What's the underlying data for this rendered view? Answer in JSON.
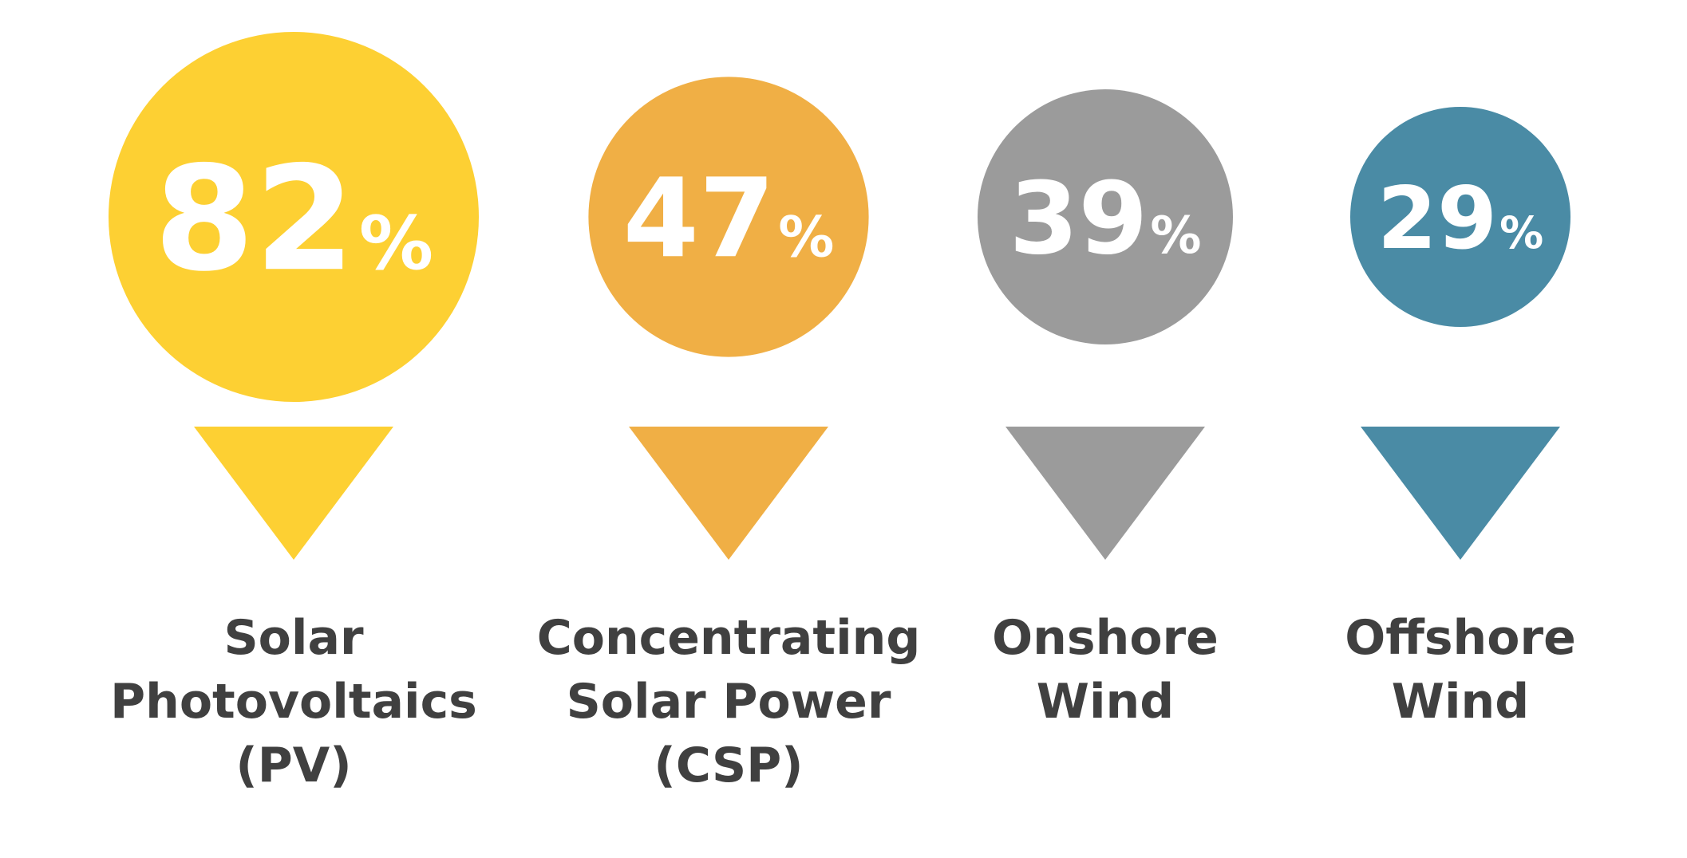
{
  "chart_data": {
    "type": "bar",
    "title": "",
    "unit": "%",
    "categories": [
      "Solar Photovoltaics (PV)",
      "Concentrating Solar Power (CSP)",
      "Onshore Wind",
      "Offshore Wind"
    ],
    "values": [
      82,
      47,
      39,
      29
    ],
    "label_lines": [
      [
        "Solar",
        "Photovoltaics",
        "(PV)"
      ],
      [
        "Concentrating",
        "Solar Power",
        "(CSP)"
      ],
      [
        "Onshore",
        "Wind"
      ],
      [
        "Offshore",
        "Wind"
      ]
    ],
    "colors": [
      "#FDD033",
      "#F0AF45",
      "#9B9B9B",
      "#4A8BA5"
    ],
    "legend": "none",
    "grid": false
  }
}
